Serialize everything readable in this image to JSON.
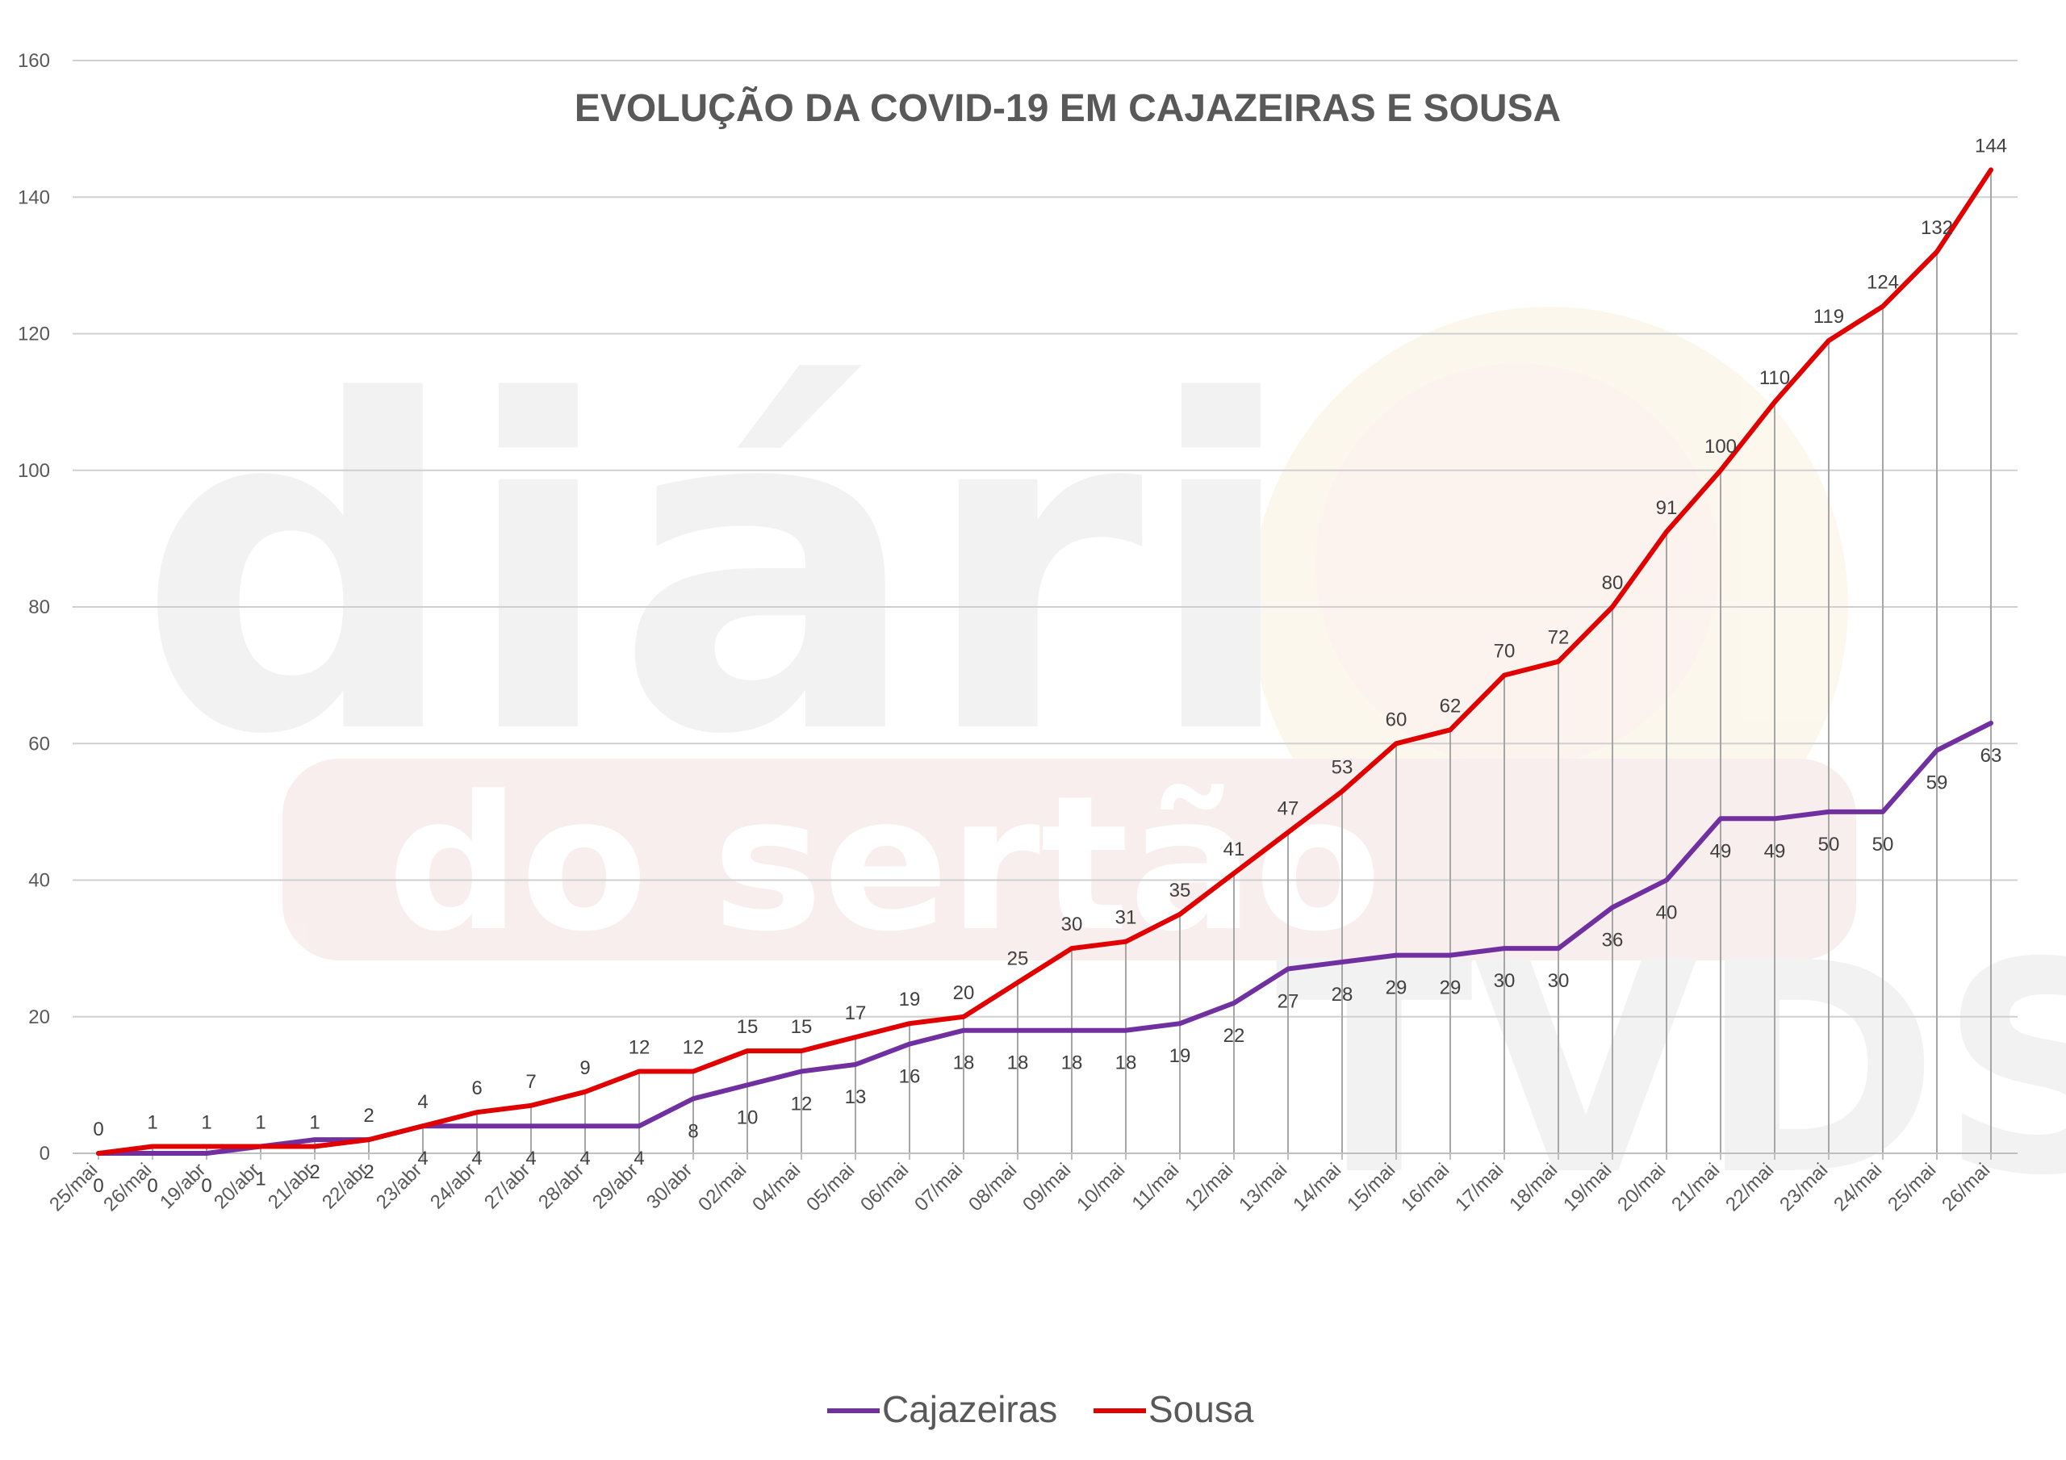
{
  "chart_data": {
    "type": "line",
    "title": "EVOLUÇÃO DA COVID-19 EM CAJAZEIRAS E SOUSA",
    "xlabel": "",
    "ylabel": "",
    "ylim": [
      0,
      160
    ],
    "yticks": [
      0,
      20,
      40,
      60,
      80,
      100,
      120,
      140,
      160
    ],
    "grid": "horizontal",
    "legend_position": "bottom",
    "categories": [
      "25/mai",
      "26/mai",
      "19/abr",
      "20/abr",
      "21/abr",
      "22/abr",
      "23/abr",
      "24/abr",
      "27/abr",
      "28/abr",
      "29/abr",
      "30/abr",
      "02/mai",
      "04/mai",
      "05/mai",
      "06/mai",
      "07/mai",
      "08/mai",
      "09/mai",
      "10/mai",
      "11/mai",
      "12/mai",
      "13/mai",
      "14/mai",
      "15/mai",
      "16/mai",
      "17/mai",
      "18/mai",
      "19/mai",
      "20/mai",
      "21/mai",
      "22/mai",
      "23/mai",
      "24/mai",
      "25/mai",
      "26/mai"
    ],
    "series": [
      {
        "name": "Cajazeiras",
        "color": "#7030a0",
        "values": [
          0,
          0,
          0,
          1,
          2,
          2,
          4,
          4,
          4,
          4,
          4,
          8,
          10,
          12,
          13,
          16,
          18,
          18,
          18,
          18,
          19,
          22,
          27,
          28,
          29,
          29,
          30,
          30,
          36,
          40,
          49,
          49,
          50,
          50,
          59,
          63
        ]
      },
      {
        "name": "Sousa",
        "color": "#e00000",
        "values": [
          0,
          1,
          1,
          1,
          1,
          2,
          4,
          6,
          7,
          9,
          12,
          12,
          15,
          15,
          17,
          19,
          20,
          25,
          30,
          31,
          35,
          41,
          47,
          53,
          60,
          62,
          70,
          72,
          80,
          91,
          100,
          110,
          119,
          124,
          132,
          144
        ]
      }
    ]
  },
  "watermark": {
    "line1": "diári",
    "line2": "do sertão",
    "line3": "TVDS"
  }
}
